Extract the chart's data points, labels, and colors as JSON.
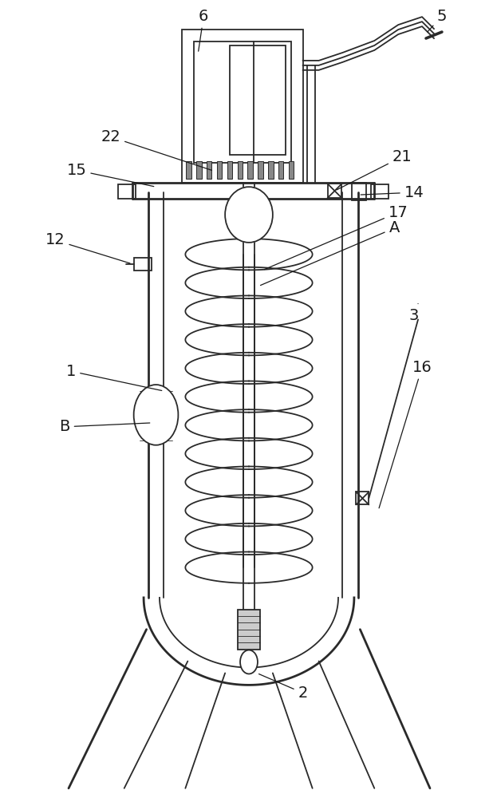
{
  "bg_color": "#ffffff",
  "line_color": "#2a2a2a",
  "line_width": 1.3,
  "thick_line": 2.0,
  "fig_width": 6.23,
  "fig_height": 10.0
}
